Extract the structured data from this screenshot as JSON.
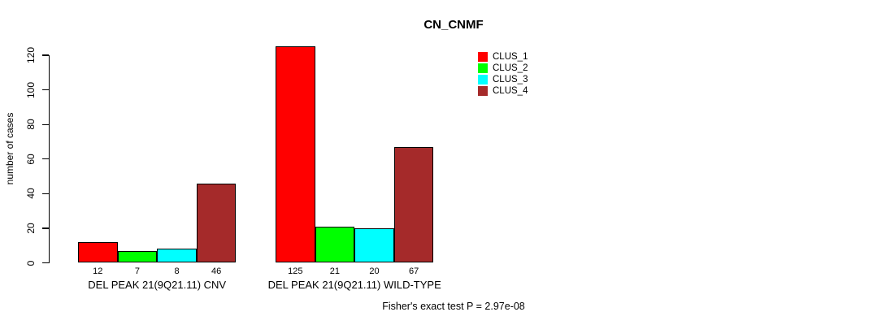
{
  "chart_data": {
    "type": "bar",
    "title": "CN_CNMF",
    "ylabel": "number of cases",
    "xlabel": "",
    "categories": [
      "DEL PEAK 21(9Q21.11) CNV",
      "DEL PEAK 21(9Q21.11) WILD-TYPE"
    ],
    "series": [
      {
        "name": "CLUS_1",
        "color": "#FF0000",
        "values": [
          12,
          125
        ]
      },
      {
        "name": "CLUS_2",
        "color": "#00FF00",
        "values": [
          7,
          21
        ]
      },
      {
        "name": "CLUS_3",
        "color": "#00FFFF",
        "values": [
          8,
          20
        ]
      },
      {
        "name": "CLUS_4",
        "color": "#A52A2A",
        "values": [
          46,
          67
        ]
      }
    ],
    "bar_value_labels": [
      [
        12,
        7,
        8,
        46
      ],
      [
        125,
        21,
        20,
        67
      ]
    ],
    "yticks": [
      0,
      20,
      40,
      60,
      80,
      100,
      120
    ],
    "ylim": [
      0,
      129
    ],
    "grid": false,
    "legend_position": "top-right",
    "legend_entries": [
      "CLUS_1",
      "CLUS_2",
      "CLUS_3",
      "CLUS_4"
    ],
    "annotation": "Fisher's exact test P = 2.97e-08"
  }
}
